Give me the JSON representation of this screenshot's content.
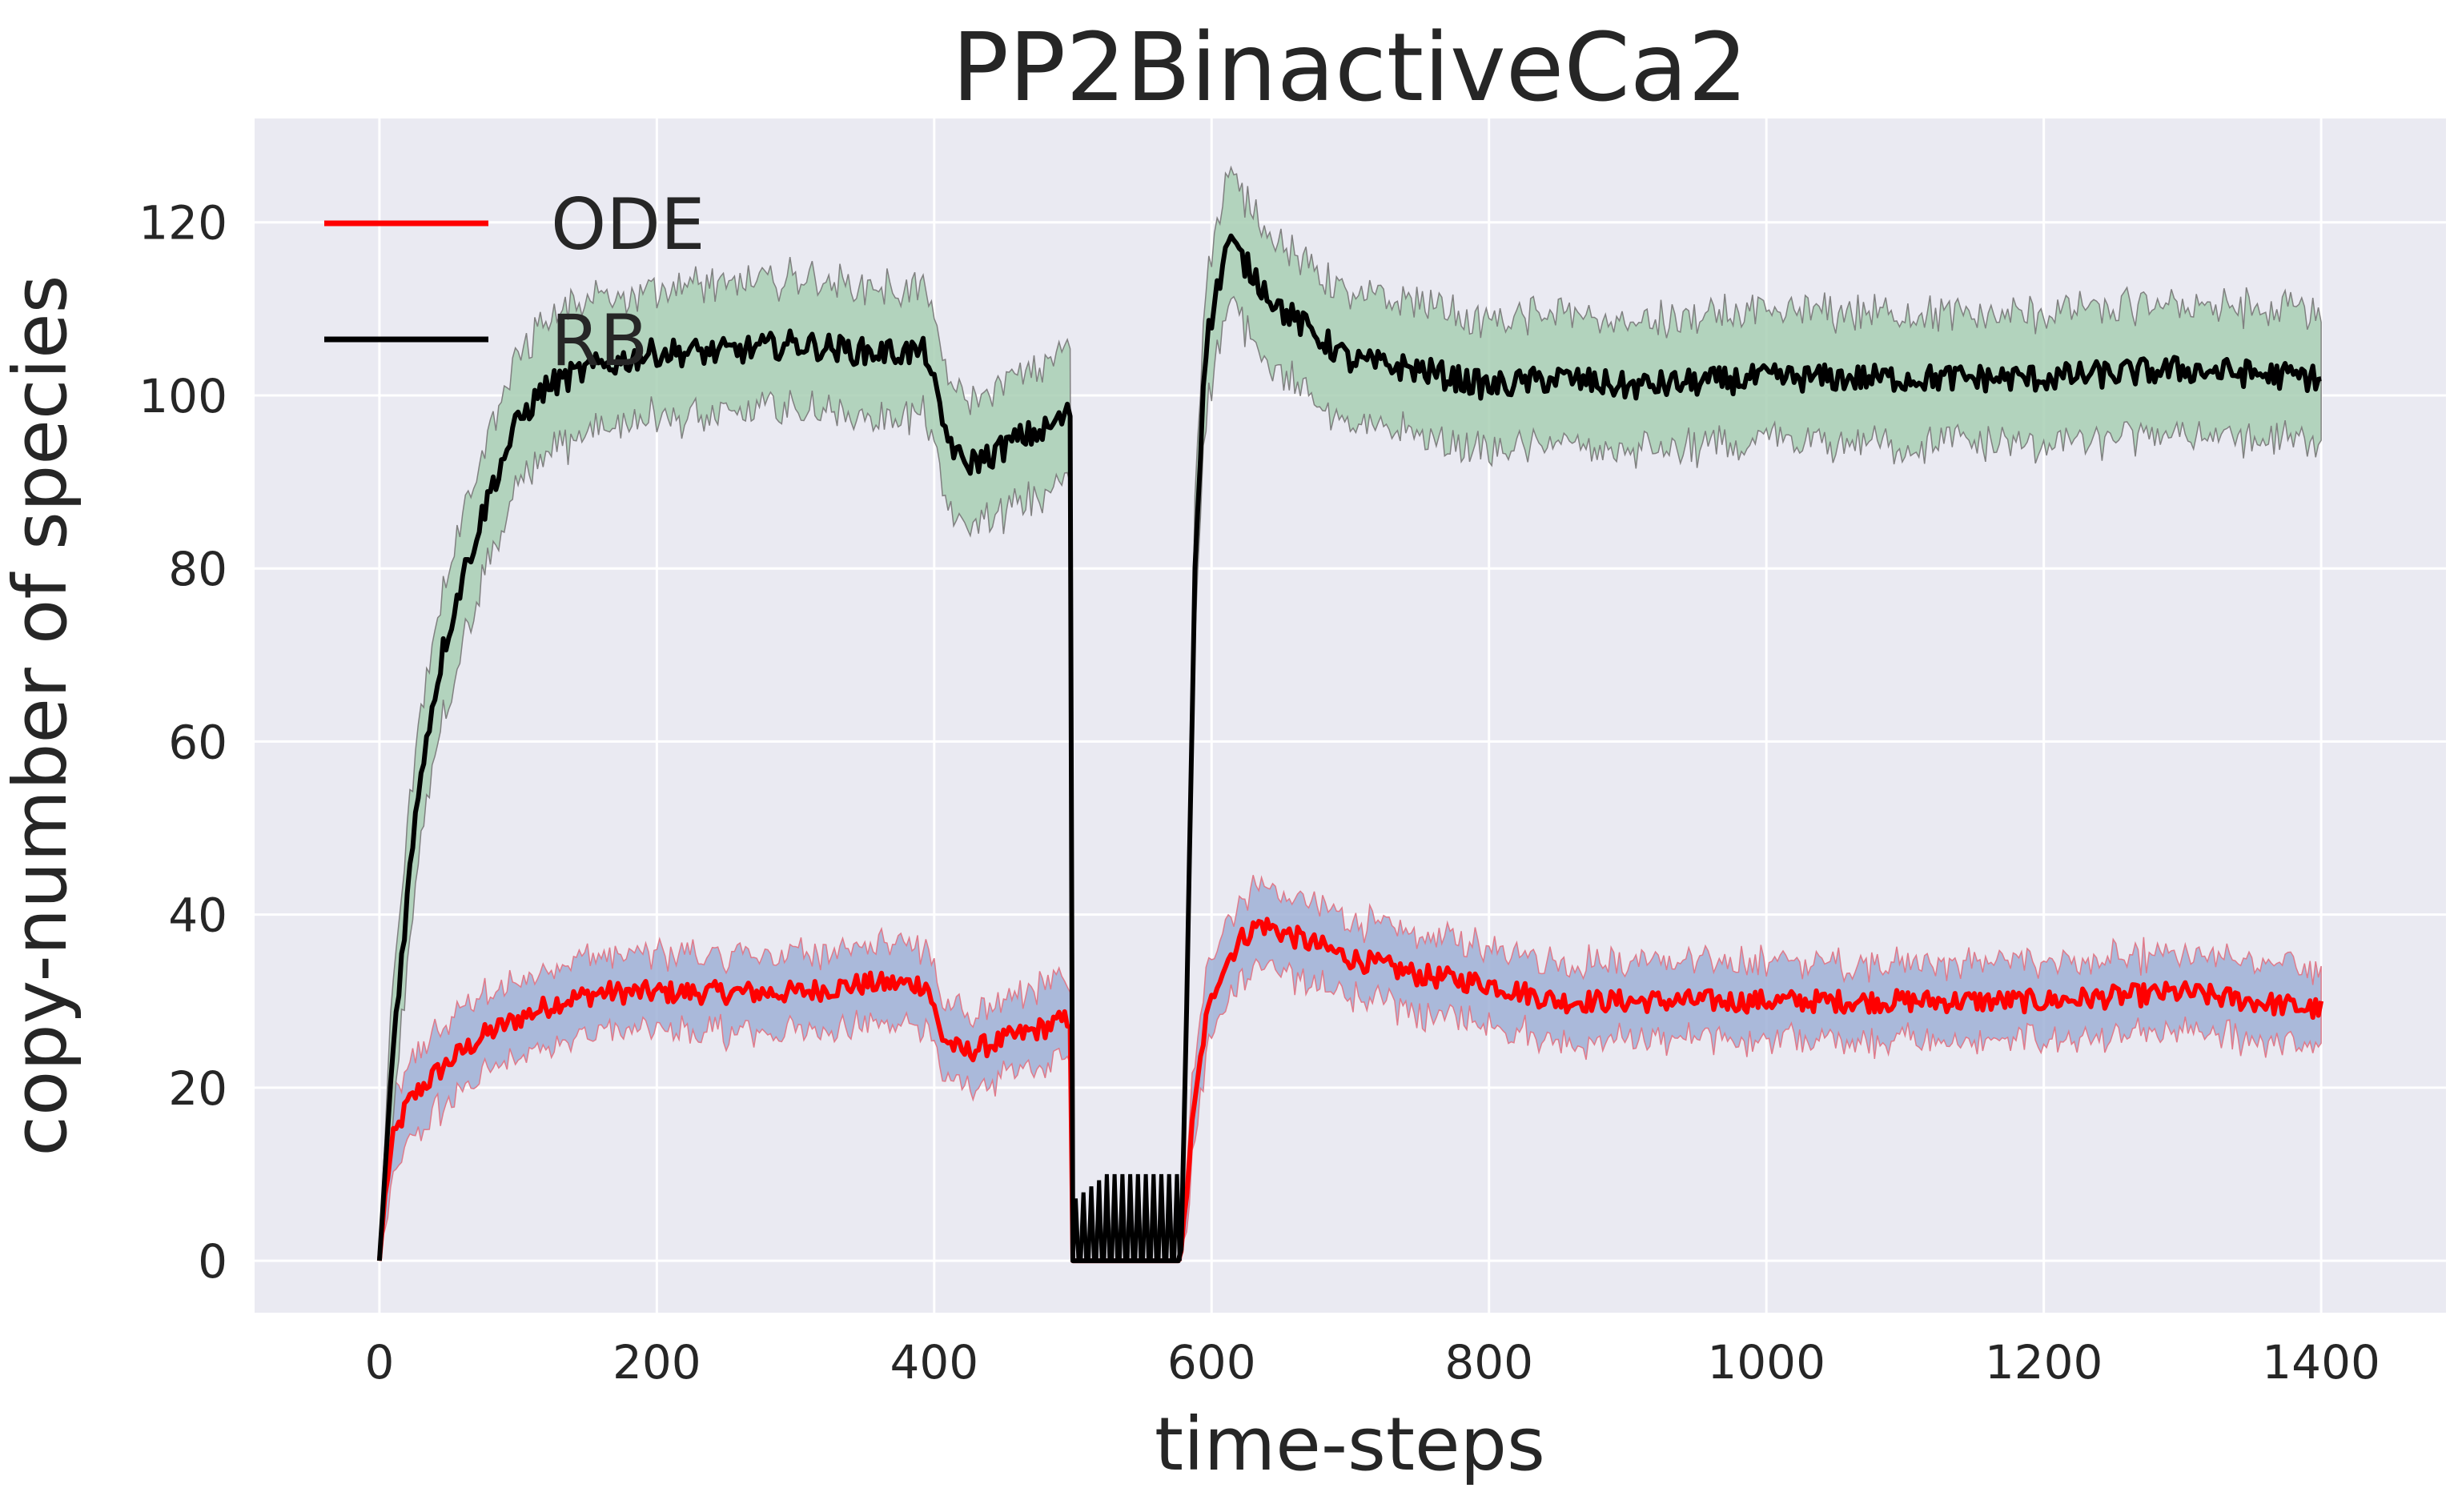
{
  "chart_data": {
    "type": "line",
    "title": "PP2BinactiveCa2",
    "xlabel": "time-steps",
    "ylabel": "copy-number of species",
    "xlim": [
      -90,
      1490
    ],
    "ylim": [
      -6,
      132
    ],
    "x_ticks": [
      0,
      200,
      400,
      600,
      800,
      1000,
      1200,
      1400
    ],
    "y_ticks": [
      0,
      20,
      40,
      60,
      80,
      100,
      120
    ],
    "grid": true,
    "legend_position": "top-left",
    "background_color": "#eaeaf2",
    "series": [
      {
        "name": "ODE",
        "color": "#ff0000",
        "band_fill": "#9fb0d6",
        "band_edge": "#e07a8a",
        "points": [
          [
            0,
            0
          ],
          [
            5,
            9
          ],
          [
            10,
            14
          ],
          [
            20,
            18
          ],
          [
            30,
            20
          ],
          [
            50,
            23
          ],
          [
            75,
            26
          ],
          [
            100,
            28
          ],
          [
            130,
            30
          ],
          [
            160,
            31
          ],
          [
            200,
            31
          ],
          [
            250,
            31
          ],
          [
            300,
            31
          ],
          [
            350,
            32
          ],
          [
            395,
            32
          ],
          [
            405,
            26
          ],
          [
            420,
            24
          ],
          [
            440,
            25
          ],
          [
            460,
            26
          ],
          [
            480,
            27
          ],
          [
            498,
            28
          ],
          [
            500,
            0
          ],
          [
            578,
            0
          ],
          [
            585,
            14
          ],
          [
            595,
            27
          ],
          [
            605,
            33
          ],
          [
            620,
            37
          ],
          [
            635,
            39
          ],
          [
            650,
            38
          ],
          [
            700,
            35
          ],
          [
            750,
            33
          ],
          [
            800,
            32
          ],
          [
            850,
            30
          ],
          [
            900,
            30
          ],
          [
            1000,
            30
          ],
          [
            1100,
            30
          ],
          [
            1200,
            30
          ],
          [
            1300,
            31
          ],
          [
            1400,
            29
          ]
        ],
        "band_half_width": 4.5
      },
      {
        "name": "RB",
        "color": "#000000",
        "band_fill": "#a8cfb4",
        "band_edge": "#808080",
        "points": [
          [
            0,
            0
          ],
          [
            10,
            25
          ],
          [
            20,
            42
          ],
          [
            30,
            57
          ],
          [
            45,
            70
          ],
          [
            60,
            79
          ],
          [
            80,
            89
          ],
          [
            100,
            97
          ],
          [
            120,
            101
          ],
          [
            150,
            103
          ],
          [
            200,
            105
          ],
          [
            250,
            105
          ],
          [
            300,
            106
          ],
          [
            350,
            105
          ],
          [
            395,
            105
          ],
          [
            405,
            97
          ],
          [
            420,
            92
          ],
          [
            440,
            93
          ],
          [
            460,
            95
          ],
          [
            480,
            96
          ],
          [
            498,
            98
          ],
          [
            500,
            0
          ],
          [
            578,
            0
          ],
          [
            582,
            30
          ],
          [
            588,
            80
          ],
          [
            595,
            105
          ],
          [
            605,
            113
          ],
          [
            612,
            118
          ],
          [
            625,
            115
          ],
          [
            650,
            110
          ],
          [
            700,
            104
          ],
          [
            750,
            103
          ],
          [
            800,
            101
          ],
          [
            850,
            102
          ],
          [
            900,
            101
          ],
          [
            1000,
            102
          ],
          [
            1100,
            102
          ],
          [
            1200,
            102
          ],
          [
            1300,
            103
          ],
          [
            1400,
            102
          ]
        ],
        "band_half_width": 7.5
      }
    ],
    "spikes": {
      "series": "RB",
      "x_start": 502,
      "x_end": 575,
      "count": 14,
      "peak": 10,
      "color": "#000000"
    }
  }
}
